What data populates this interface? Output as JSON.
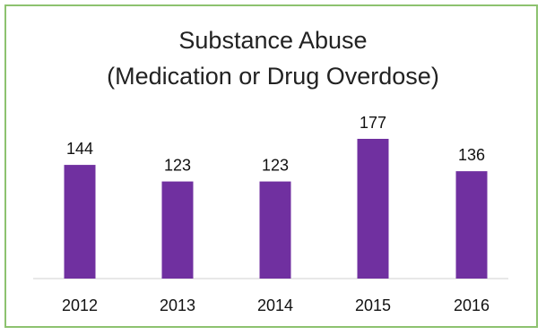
{
  "chart_data": {
    "type": "bar",
    "title": [
      "Substance Abuse",
      "(Medication or Drug Overdose)"
    ],
    "categories": [
      "2012",
      "2013",
      "2014",
      "2015",
      "2016"
    ],
    "values": [
      144,
      123,
      123,
      177,
      136
    ],
    "data_labels": true,
    "ylim": [
      0,
      177
    ],
    "grid": false,
    "legend": "none",
    "colors": {
      "bar": "#7030a0",
      "border": "#8dc26f"
    }
  }
}
